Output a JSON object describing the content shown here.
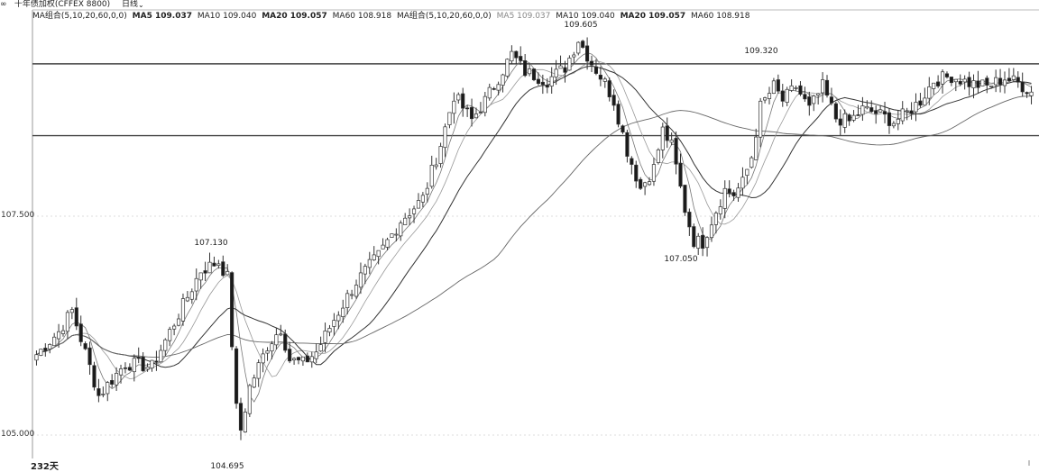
{
  "topbar": {
    "symbol": "十年债加权(CFFEX 8800)",
    "period": "日线",
    "link_icon": "link-icon",
    "dropdown_icon": "chevron-down-icon"
  },
  "legend": {
    "group1_label": "MA组合(5,10,20,60,0,0)",
    "ma5": "MA5 109.037",
    "ma10": "MA10 109.040",
    "ma20": "MA20 109.057",
    "ma60": "MA60 108.918",
    "group2_label": "MA组合(5,10,20,60,0,0)",
    "ma5_b": "MA5 109.037",
    "ma10_b": "MA10 109.040",
    "ma20_b": "MA20 109.057",
    "ma60_b": "MA60 108.918"
  },
  "footer": {
    "days_label": "232天"
  },
  "colors": {
    "up": "#ffffff",
    "down": "#1a1a1a",
    "wick": "#333333",
    "grid": "#dddddd",
    "hline": "#444444"
  },
  "chart_data": {
    "type": "candlestick",
    "ylim": [
      104.6,
      109.8
    ],
    "yticks": [
      "105.000",
      "107.500"
    ],
    "horizontal_lines": [
      109.24,
      108.42
    ],
    "annotations": [
      {
        "label": "109.605",
        "value": 109.605
      },
      {
        "label": "109.320",
        "value": 109.32
      },
      {
        "label": "107.130",
        "value": 107.13
      },
      {
        "label": "107.050",
        "value": 107.05
      },
      {
        "label": "104.695",
        "value": 104.695
      }
    ],
    "close_anchors": [
      [
        0,
        105.92
      ],
      [
        5,
        106.18
      ],
      [
        8,
        106.42
      ],
      [
        12,
        105.78
      ],
      [
        14,
        105.45
      ],
      [
        20,
        105.82
      ],
      [
        26,
        105.78
      ],
      [
        31,
        106.28
      ],
      [
        37,
        106.88
      ],
      [
        41,
        106.98
      ],
      [
        43,
        106.8
      ],
      [
        45,
        105.3
      ],
      [
        46,
        105.06
      ],
      [
        48,
        105.55
      ],
      [
        52,
        106.02
      ],
      [
        55,
        106.22
      ],
      [
        57,
        105.86
      ],
      [
        60,
        105.82
      ],
      [
        63,
        105.95
      ],
      [
        67,
        106.32
      ],
      [
        72,
        106.75
      ],
      [
        77,
        107.05
      ],
      [
        82,
        107.45
      ],
      [
        87,
        107.7
      ],
      [
        91,
        108.32
      ],
      [
        94,
        108.88
      ],
      [
        98,
        108.6
      ],
      [
        101,
        108.82
      ],
      [
        104,
        109.08
      ],
      [
        107,
        109.35
      ],
      [
        110,
        109.15
      ],
      [
        115,
        109.05
      ],
      [
        119,
        109.2
      ],
      [
        122,
        109.52
      ],
      [
        125,
        109.25
      ],
      [
        128,
        109.02
      ],
      [
        130,
        108.82
      ],
      [
        133,
        108.25
      ],
      [
        136,
        107.82
      ],
      [
        139,
        108.05
      ],
      [
        141,
        108.48
      ],
      [
        143,
        108.3
      ],
      [
        146,
        107.58
      ],
      [
        148,
        107.22
      ],
      [
        150,
        107.2
      ],
      [
        152,
        107.45
      ],
      [
        155,
        107.8
      ],
      [
        157,
        107.75
      ],
      [
        159,
        107.88
      ],
      [
        161,
        108.18
      ],
      [
        163,
        108.75
      ],
      [
        166,
        108.98
      ],
      [
        168,
        108.82
      ],
      [
        171,
        108.98
      ],
      [
        174,
        108.72
      ],
      [
        177,
        108.98
      ],
      [
        180,
        108.62
      ],
      [
        183,
        108.58
      ],
      [
        186,
        108.72
      ],
      [
        189,
        108.68
      ],
      [
        193,
        108.58
      ],
      [
        196,
        108.68
      ],
      [
        199,
        108.82
      ],
      [
        202,
        109.05
      ],
      [
        206,
        109.1
      ],
      [
        210,
        109.02
      ],
      [
        214,
        108.98
      ],
      [
        218,
        109.08
      ],
      [
        221,
        109.02
      ],
      [
        224,
        108.92
      ]
    ],
    "count": 225
  }
}
